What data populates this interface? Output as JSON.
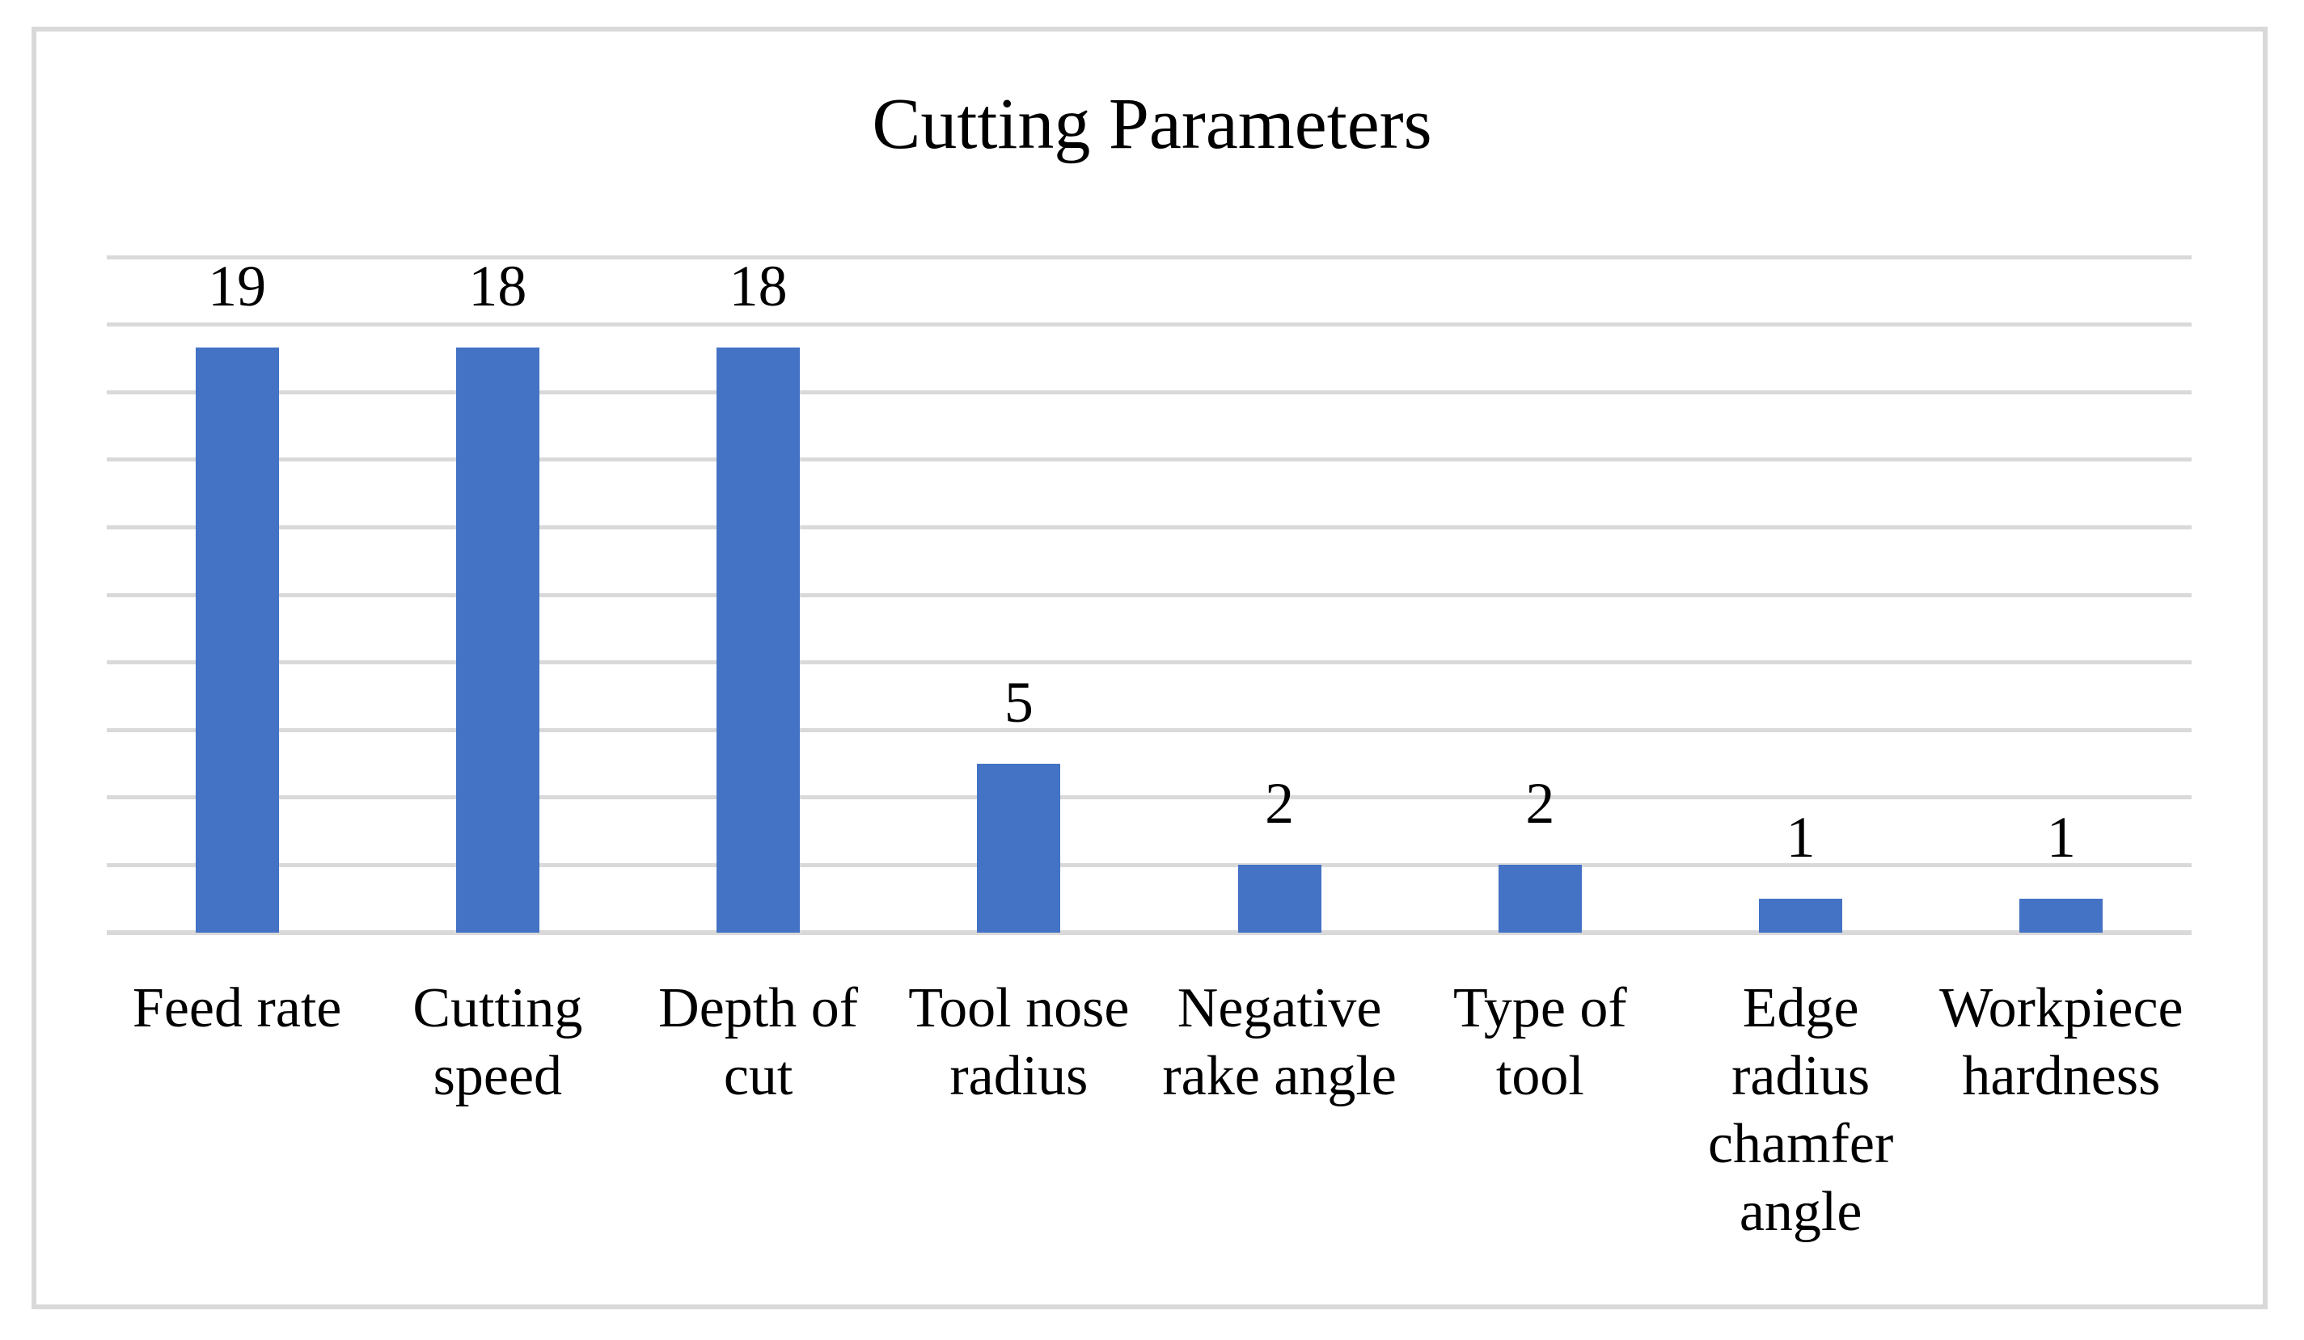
{
  "chart_data": {
    "type": "bar",
    "title": "Cutting Parameters",
    "categories": [
      "Feed rate",
      "Cutting speed",
      "Depth of cut",
      "Tool nose radius",
      "Negative rake angle",
      "Type of tool",
      "Edge radius chamfer angle",
      "Workpiece hardness"
    ],
    "category_label_lines": [
      [
        "Feed rate"
      ],
      [
        "Cutting",
        "speed"
      ],
      [
        "Depth of",
        "cut"
      ],
      [
        "Tool nose",
        "radius"
      ],
      [
        "Negative",
        "rake angle"
      ],
      [
        "Type of",
        "tool"
      ],
      [
        "Edge",
        "radius",
        "chamfer",
        "angle"
      ],
      [
        "Workpiece",
        "hardness"
      ]
    ],
    "values": [
      19,
      18,
      18,
      5,
      2,
      2,
      1,
      1
    ],
    "data_labels": [
      "19",
      "18",
      "18",
      "5",
      "2",
      "2",
      "1",
      "1"
    ],
    "xlabel": "",
    "ylabel": "",
    "ylim": [
      0,
      20
    ],
    "gridline_step": 2,
    "grid": "horizontal",
    "legend": "none",
    "y_axis_tick_labels_visible": false,
    "colors": {
      "bar": "#4472C4",
      "gridline": "#D9D9D9",
      "frame_border": "#D9D9D9",
      "text": "#000000",
      "background": "#FFFFFF"
    }
  }
}
